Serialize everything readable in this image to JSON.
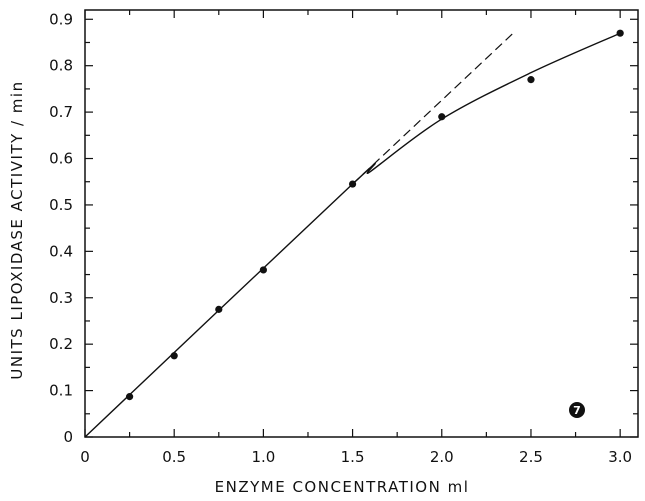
{
  "chart_data": {
    "type": "scatter",
    "title": "",
    "xlabel": "ENZYME CONCENTRATION ml",
    "ylabel": "UNITS LIPOXIDASE ACTIVITY / min",
    "xlim": [
      0,
      3.1
    ],
    "ylim": [
      0,
      0.92
    ],
    "x_ticks": [
      0,
      0.5,
      1.0,
      1.5,
      2.0,
      2.5,
      3.0
    ],
    "x_tick_labels": [
      "0",
      "0.5",
      "1.0",
      "1.5",
      "2.0",
      "2.5",
      "3.0"
    ],
    "y_ticks": [
      0,
      0.1,
      0.2,
      0.3,
      0.4,
      0.5,
      0.6,
      0.7,
      0.8,
      0.9
    ],
    "y_tick_labels": [
      "0",
      "0.1",
      "0.2",
      "0.3",
      "0.4",
      "0.5",
      "0.6",
      "0.7",
      "0.8",
      "0.9"
    ],
    "grid": false,
    "points": [
      {
        "x": 0.25,
        "y": 0.087
      },
      {
        "x": 0.5,
        "y": 0.175
      },
      {
        "x": 0.75,
        "y": 0.275
      },
      {
        "x": 1.0,
        "y": 0.36
      },
      {
        "x": 1.5,
        "y": 0.545
      },
      {
        "x": 2.0,
        "y": 0.69
      },
      {
        "x": 2.5,
        "y": 0.77
      },
      {
        "x": 3.0,
        "y": 0.87
      }
    ],
    "fitted_curve": [
      {
        "x": 0,
        "y": 0
      },
      {
        "x": 1.5,
        "y": 0.545
      },
      {
        "x": 1.6,
        "y": 0.572
      },
      {
        "x": 2.0,
        "y": 0.685
      },
      {
        "x": 2.5,
        "y": 0.785
      },
      {
        "x": 3.0,
        "y": 0.87
      }
    ],
    "extrapolation_line": [
      {
        "x": 1.5,
        "y": 0.545
      },
      {
        "x": 2.4,
        "y": 0.87
      }
    ],
    "badge": "7"
  }
}
